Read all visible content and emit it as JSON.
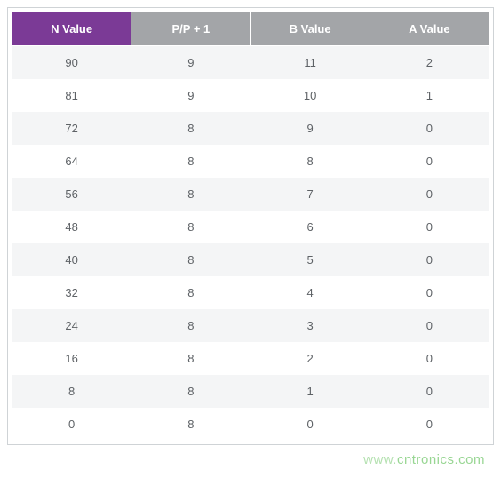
{
  "table": {
    "columns": [
      {
        "label": "N Value",
        "header_bg": "#7b3a96"
      },
      {
        "label": "P/P + 1",
        "header_bg": "#a3a5a8"
      },
      {
        "label": "B Value",
        "header_bg": "#a3a5a8"
      },
      {
        "label": "A Value",
        "header_bg": "#a3a5a8"
      }
    ],
    "rows": [
      [
        "90",
        "9",
        "11",
        "2"
      ],
      [
        "81",
        "9",
        "10",
        "1"
      ],
      [
        "72",
        "8",
        "9",
        "0"
      ],
      [
        "64",
        "8",
        "8",
        "0"
      ],
      [
        "56",
        "8",
        "7",
        "0"
      ],
      [
        "48",
        "8",
        "6",
        "0"
      ],
      [
        "40",
        "8",
        "5",
        "0"
      ],
      [
        "32",
        "8",
        "4",
        "0"
      ],
      [
        "24",
        "8",
        "3",
        "0"
      ],
      [
        "16",
        "8",
        "2",
        "0"
      ],
      [
        "8",
        "8",
        "1",
        "0"
      ],
      [
        "0",
        "8",
        "0",
        "0"
      ]
    ],
    "header_text_color": "#ffffff",
    "cell_text_color": "#5e6266",
    "row_alt_bg": "#f4f5f6",
    "row_bg": "#ffffff",
    "border_color": "#cfd3d6",
    "font_size_header": 13,
    "font_size_cell": 13
  },
  "watermark": {
    "prefix": "www.",
    "main": "cntronics.com",
    "color_main": "rgba(68,180,58,0.55)",
    "color_prefix": "rgba(68,180,58,0.40)"
  }
}
